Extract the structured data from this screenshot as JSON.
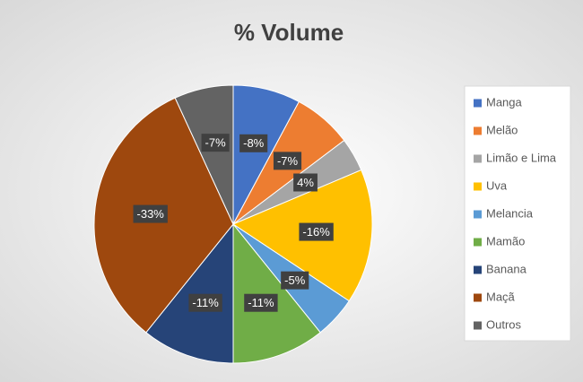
{
  "chart_data": {
    "type": "pie",
    "title": "% Volume",
    "categories": [
      "Manga",
      "Melão",
      "Limão e Lima",
      "Uva",
      "Melancia",
      "Mamão",
      "Banana",
      "Maçã",
      "Outros"
    ],
    "values": [
      -8,
      -7,
      4,
      -16,
      -5,
      -11,
      -11,
      -33,
      -7
    ],
    "value_labels": [
      "-8%",
      "-7%",
      "4%",
      "-16%",
      "-5%",
      "-11%",
      "-11%",
      "-33%",
      "-7%"
    ],
    "colors": [
      "#4472c4",
      "#ed7d31",
      "#a5a5a5",
      "#ffc000",
      "#5b9bd5",
      "#70ad47",
      "#264478",
      "#9e480e",
      "#636363"
    ],
    "legend": "right"
  }
}
